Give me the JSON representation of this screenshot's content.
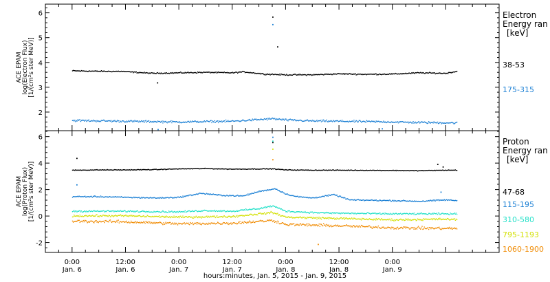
{
  "chart_data": [
    {
      "type": "scatter",
      "panel": "electron",
      "ylabel_lines": [
        "ACE EPAM",
        "log(Electron Flux)",
        "[1/(cm²s ster MeV)]"
      ],
      "ylim": [
        1.25,
        6.35
      ],
      "yticks": [
        2,
        3,
        4,
        5,
        6
      ],
      "legend_title_lines": [
        "Electron",
        "Energy ran",
        "[keV]"
      ],
      "series": [
        {
          "name": "38-53",
          "color": "#000000",
          "base": [
            [
              0,
              3.68
            ],
            [
              0.3,
              3.66
            ],
            [
              0.45,
              3.66
            ],
            [
              0.75,
              3.58
            ],
            [
              1.0,
              3.6
            ],
            [
              1.25,
              3.62
            ],
            [
              1.5,
              3.6
            ],
            [
              1.6,
              3.64
            ],
            [
              1.8,
              3.55
            ],
            [
              2.0,
              3.52
            ],
            [
              2.25,
              3.52
            ],
            [
              2.5,
              3.56
            ],
            [
              2.75,
              3.54
            ],
            [
              3.0,
              3.55
            ],
            [
              3.25,
              3.6
            ],
            [
              3.5,
              3.58
            ],
            [
              3.6,
              3.66
            ]
          ],
          "noise": 0.035,
          "spikes": [
            [
              1.875,
              5.85
            ],
            [
              1.92,
              4.65
            ],
            [
              0.795,
              3.2
            ]
          ]
        },
        {
          "name": "175-315",
          "color": "#1a7fd4",
          "base": [
            [
              0,
              1.68
            ],
            [
              0.5,
              1.65
            ],
            [
              1.0,
              1.62
            ],
            [
              1.5,
              1.65
            ],
            [
              1.875,
              1.75
            ],
            [
              2.0,
              1.7
            ],
            [
              2.25,
              1.66
            ],
            [
              2.5,
              1.65
            ],
            [
              3.0,
              1.62
            ],
            [
              3.25,
              1.6
            ],
            [
              3.6,
              1.58
            ]
          ],
          "noise": 0.06,
          "spikes": [
            [
              1.875,
              5.55
            ],
            [
              0.8,
              1.32
            ],
            [
              2.9,
              1.35
            ]
          ]
        }
      ]
    },
    {
      "type": "scatter",
      "panel": "proton",
      "ylabel_lines": [
        "ACE EPAM",
        "log(Proton Flux)",
        "[1/(cm²s ster MeV)]"
      ],
      "ylim": [
        -2.75,
        6.45
      ],
      "yticks": [
        -2,
        0,
        2,
        4,
        6
      ],
      "legend_title_lines": [
        "Proton",
        "Energy ran",
        "[keV]"
      ],
      "series": [
        {
          "name": "47-68",
          "color": "#000000",
          "base": [
            [
              0,
              3.5
            ],
            [
              0.25,
              3.52
            ],
            [
              0.5,
              3.52
            ],
            [
              0.8,
              3.55
            ],
            [
              1.0,
              3.6
            ],
            [
              1.25,
              3.62
            ],
            [
              1.5,
              3.58
            ],
            [
              1.875,
              3.6
            ],
            [
              2.0,
              3.52
            ],
            [
              2.25,
              3.5
            ],
            [
              2.5,
              3.5
            ],
            [
              3.0,
              3.48
            ],
            [
              3.25,
              3.46
            ],
            [
              3.5,
              3.5
            ],
            [
              3.6,
              3.5
            ]
          ],
          "noise": 0.04,
          "spikes": [
            [
              0.04,
              4.4
            ],
            [
              1.875,
              5.6
            ],
            [
              3.42,
              3.95
            ],
            [
              3.47,
              3.75
            ]
          ]
        },
        {
          "name": "115-195",
          "color": "#1a7fd4",
          "base": [
            [
              0,
              1.5
            ],
            [
              0.25,
              1.5
            ],
            [
              0.5,
              1.45
            ],
            [
              0.8,
              1.4
            ],
            [
              1.0,
              1.45
            ],
            [
              1.2,
              1.75
            ],
            [
              1.4,
              1.6
            ],
            [
              1.6,
              1.55
            ],
            [
              1.75,
              1.9
            ],
            [
              1.9,
              2.1
            ],
            [
              2.0,
              1.7
            ],
            [
              2.1,
              1.5
            ],
            [
              2.25,
              1.4
            ],
            [
              2.45,
              1.65
            ],
            [
              2.6,
              1.25
            ],
            [
              3.0,
              1.2
            ],
            [
              3.25,
              1.15
            ],
            [
              3.5,
              1.25
            ],
            [
              3.6,
              1.2
            ]
          ],
          "noise": 0.07,
          "spikes": [
            [
              0.04,
              2.4
            ],
            [
              1.875,
              6.0
            ],
            [
              3.45,
              1.85
            ]
          ]
        },
        {
          "name": "310-580",
          "color": "#22e0c8",
          "base": [
            [
              0,
              0.4
            ],
            [
              0.5,
              0.4
            ],
            [
              1.0,
              0.35
            ],
            [
              1.25,
              0.45
            ],
            [
              1.5,
              0.4
            ],
            [
              1.75,
              0.6
            ],
            [
              1.875,
              0.8
            ],
            [
              2.0,
              0.4
            ],
            [
              2.25,
              0.3
            ],
            [
              2.5,
              0.25
            ],
            [
              3.0,
              0.2
            ],
            [
              3.5,
              0.2
            ],
            [
              3.6,
              0.2
            ]
          ],
          "noise": 0.09,
          "spikes": [
            [
              1.875,
              5.7
            ]
          ]
        },
        {
          "name": "795-1193",
          "color": "#d2e000",
          "base": [
            [
              0,
              0.05
            ],
            [
              0.5,
              0.05
            ],
            [
              1.0,
              -0.05
            ],
            [
              1.5,
              0.0
            ],
            [
              1.875,
              0.3
            ],
            [
              2.0,
              -0.05
            ],
            [
              2.5,
              -0.15
            ],
            [
              3.0,
              -0.25
            ],
            [
              3.5,
              -0.2
            ],
            [
              3.6,
              -0.25
            ]
          ],
          "noise": 0.11,
          "spikes": [
            [
              1.875,
              5.1
            ]
          ]
        },
        {
          "name": "1060-1900",
          "color": "#f08a00",
          "base": [
            [
              0,
              -0.35
            ],
            [
              0.5,
              -0.4
            ],
            [
              1.0,
              -0.55
            ],
            [
              1.5,
              -0.5
            ],
            [
              1.875,
              -0.3
            ],
            [
              2.0,
              -0.6
            ],
            [
              2.5,
              -0.7
            ],
            [
              3.0,
              -0.85
            ],
            [
              3.5,
              -0.9
            ],
            [
              3.6,
              -0.9
            ]
          ],
          "noise": 0.15,
          "spikes": [
            [
              1.875,
              4.3
            ],
            [
              2.3,
              -2.1
            ]
          ]
        }
      ]
    }
  ],
  "x_axis": {
    "range_days": [
      -0.25,
      4.0
    ],
    "data_range_days": [
      0.0,
      3.6
    ],
    "ticks": [
      {
        "pos": 0.0,
        "time": "0:00",
        "date": "Jan. 6"
      },
      {
        "pos": 0.5,
        "time": "12:00",
        "date": "Jan. 6"
      },
      {
        "pos": 1.0,
        "time": "0:00",
        "date": "Jan. 7"
      },
      {
        "pos": 1.5,
        "time": "12:00",
        "date": "Jan. 7"
      },
      {
        "pos": 2.0,
        "time": "0:00",
        "date": "Jan. 8"
      },
      {
        "pos": 2.5,
        "time": "12:00",
        "date": "Jan. 8"
      },
      {
        "pos": 3.0,
        "time": "0:00",
        "date": "Jan. 9"
      }
    ],
    "minor_step_days": 0.125,
    "title": "hours:minutes, Jan. 5, 2015 - Jan. 9, 2015"
  }
}
